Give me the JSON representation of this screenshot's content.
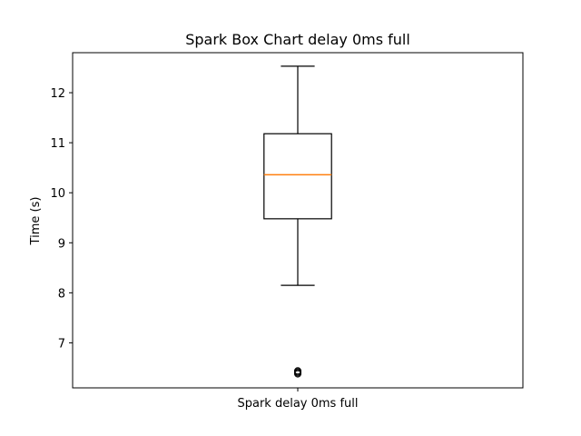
{
  "chart_data": {
    "type": "box",
    "title": "Spark Box Chart delay 0ms full",
    "xlabel": "",
    "ylabel": "Time (s)",
    "categories": [
      "Spark delay 0ms full"
    ],
    "ylim": [
      6.1,
      12.8
    ],
    "yticks": [
      7,
      8,
      9,
      10,
      11,
      12
    ],
    "grid": false,
    "boxes": [
      {
        "name": "Spark delay 0ms full",
        "whisker_low": 8.15,
        "q1": 9.48,
        "median": 10.36,
        "q3": 11.18,
        "whisker_high": 12.53,
        "outliers": [
          6.38,
          6.4,
          6.42,
          6.44
        ]
      }
    ],
    "colors": {
      "box": "#000000",
      "median": "#ff7f0e"
    }
  }
}
